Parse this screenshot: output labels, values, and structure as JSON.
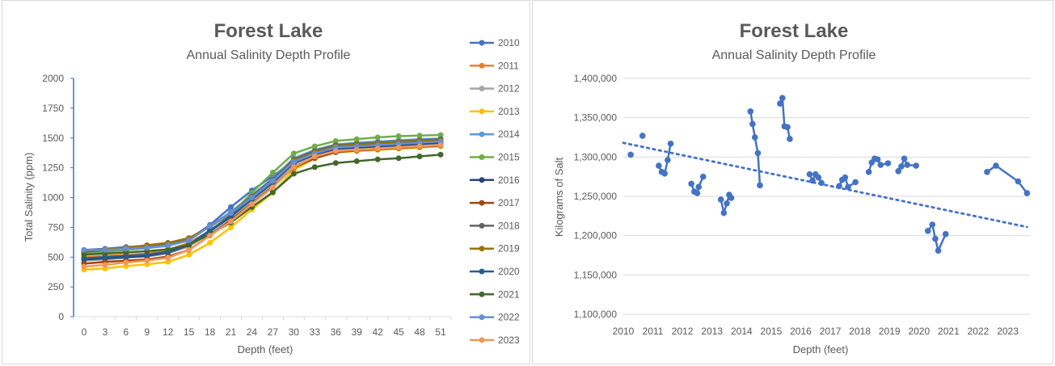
{
  "chart_data": [
    {
      "type": "line",
      "title": "Forest Lake",
      "subtitle": "Annual Salinity Depth Profile",
      "xlabel": "Depth (feet)",
      "ylabel": "Total Salinity (ppm)",
      "ylim": [
        0,
        2000
      ],
      "yticks": [
        0,
        250,
        500,
        750,
        1000,
        1250,
        1500,
        1750,
        2000
      ],
      "legend_position": "right",
      "grid": "horizontal",
      "x": [
        0,
        3,
        6,
        9,
        12,
        15,
        18,
        21,
        24,
        27,
        30,
        33,
        36,
        39,
        42,
        45,
        48,
        51
      ],
      "series": [
        {
          "name": "2010",
          "color": "#4472C4",
          "values": [
            560,
            570,
            585,
            595,
            610,
            650,
            770,
            920,
            1060,
            1180,
            1310,
            1390,
            1430,
            1440,
            1450,
            1460,
            1470,
            1480
          ]
        },
        {
          "name": "2011",
          "color": "#ED7D31",
          "values": [
            500,
            510,
            520,
            530,
            560,
            620,
            720,
            850,
            990,
            1120,
            1280,
            1360,
            1400,
            1410,
            1420,
            1430,
            1440,
            1445
          ]
        },
        {
          "name": "2012",
          "color": "#A5A5A5",
          "values": [
            470,
            480,
            495,
            505,
            530,
            590,
            700,
            830,
            970,
            1110,
            1270,
            1350,
            1400,
            1415,
            1425,
            1435,
            1445,
            1450
          ]
        },
        {
          "name": "2013",
          "color": "#FFC000",
          "values": [
            395,
            405,
            425,
            440,
            460,
            520,
            620,
            750,
            900,
            1040,
            1230,
            1330,
            1380,
            1390,
            1400,
            1410,
            1420,
            1430
          ]
        },
        {
          "name": "2014",
          "color": "#5B9BD5",
          "values": [
            540,
            550,
            565,
            575,
            595,
            640,
            760,
            880,
            1020,
            1160,
            1330,
            1400,
            1445,
            1460,
            1470,
            1480,
            1490,
            1495
          ]
        },
        {
          "name": "2015",
          "color": "#70AD47",
          "values": [
            530,
            545,
            560,
            575,
            600,
            650,
            760,
            860,
            1040,
            1210,
            1370,
            1430,
            1475,
            1490,
            1505,
            1515,
            1520,
            1525
          ]
        },
        {
          "name": "2016",
          "color": "#264478",
          "values": [
            480,
            490,
            500,
            510,
            540,
            600,
            720,
            840,
            990,
            1130,
            1290,
            1360,
            1410,
            1420,
            1430,
            1440,
            1450,
            1460
          ]
        },
        {
          "name": "2017",
          "color": "#9E480E",
          "values": [
            445,
            460,
            470,
            480,
            505,
            560,
            680,
            810,
            950,
            1090,
            1250,
            1330,
            1380,
            1395,
            1405,
            1415,
            1425,
            1435
          ]
        },
        {
          "name": "2018",
          "color": "#636363",
          "values": [
            545,
            560,
            575,
            590,
            615,
            655,
            760,
            870,
            1010,
            1150,
            1320,
            1390,
            1440,
            1450,
            1460,
            1470,
            1480,
            1490
          ]
        },
        {
          "name": "2019",
          "color": "#997300",
          "values": [
            555,
            565,
            580,
            600,
            620,
            660,
            755,
            865,
            1000,
            1140,
            1310,
            1380,
            1430,
            1445,
            1455,
            1465,
            1475,
            1480
          ]
        },
        {
          "name": "2020",
          "color": "#255E91",
          "values": [
            490,
            500,
            510,
            520,
            545,
            605,
            725,
            845,
            985,
            1125,
            1290,
            1365,
            1415,
            1430,
            1440,
            1450,
            1460,
            1470
          ]
        },
        {
          "name": "2021",
          "color": "#43682B",
          "values": [
            520,
            530,
            540,
            550,
            565,
            605,
            690,
            790,
            920,
            1045,
            1200,
            1255,
            1290,
            1305,
            1320,
            1330,
            1345,
            1360
          ]
        },
        {
          "name": "2022",
          "color": "#698ED0",
          "values": [
            560,
            560,
            570,
            580,
            600,
            640,
            760,
            870,
            1000,
            1140,
            1300,
            1370,
            1420,
            1430,
            1440,
            1450,
            1460,
            1470
          ]
        },
        {
          "name": "2023",
          "color": "#F1975A",
          "values": [
            420,
            435,
            455,
            470,
            495,
            560,
            680,
            800,
            945,
            1085,
            1255,
            1345,
            1390,
            1400,
            1410,
            1420,
            1430,
            1440
          ]
        }
      ]
    },
    {
      "type": "scatter",
      "title": "Forest Lake",
      "subtitle": "Annual Salinity Depth Profile",
      "xlabel": "Depth (feet)",
      "ylabel": "Kilograms of Salt",
      "xlim": [
        2010,
        2023.75
      ],
      "xticks": [
        2010,
        2011,
        2012,
        2013,
        2014,
        2015,
        2016,
        2017,
        2018,
        2019,
        2020,
        2021,
        2022,
        2023
      ],
      "ylim": [
        1100000,
        1400000
      ],
      "yticks": [
        "1,100,000",
        "1,150,000",
        "1,200,000",
        "1,250,000",
        "1,300,000",
        "1,350,000",
        "1,400,000"
      ],
      "grid": "horizontal",
      "color": "#4472C4",
      "trendline": {
        "style": "dotted",
        "start": [
          2010,
          1318000
        ],
        "end": [
          2023.65,
          1211000
        ]
      },
      "segments": [
        [
          [
            2010.25,
            1303000
          ]
        ],
        [
          [
            2010.65,
            1327000
          ]
        ],
        [
          [
            2011.2,
            1289000
          ],
          [
            2011.3,
            1281000
          ],
          [
            2011.4,
            1279000
          ],
          [
            2011.5,
            1296000
          ],
          [
            2011.6,
            1317000
          ]
        ],
        [
          [
            2012.3,
            1266000
          ],
          [
            2012.4,
            1256000
          ],
          [
            2012.5,
            1254000
          ],
          [
            2012.55,
            1262000
          ],
          [
            2012.7,
            1275000
          ]
        ],
        [
          [
            2013.3,
            1246000
          ],
          [
            2013.4,
            1229000
          ],
          [
            2013.5,
            1241000
          ],
          [
            2013.58,
            1252000
          ],
          [
            2013.65,
            1248000
          ]
        ],
        [
          [
            2014.3,
            1358000
          ],
          [
            2014.37,
            1342000
          ],
          [
            2014.45,
            1325000
          ],
          [
            2014.55,
            1305000
          ],
          [
            2014.62,
            1264000
          ]
        ],
        [
          [
            2015.3,
            1368000
          ],
          [
            2015.38,
            1375000
          ],
          [
            2015.45,
            1339000
          ],
          [
            2015.55,
            1338000
          ],
          [
            2015.63,
            1323000
          ]
        ],
        [
          [
            2016.3,
            1278000
          ],
          [
            2016.4,
            1270000
          ],
          [
            2016.5,
            1278000
          ],
          [
            2016.6,
            1274000
          ],
          [
            2016.7,
            1267000
          ]
        ],
        [
          [
            2017.3,
            1263000
          ],
          [
            2017.4,
            1271000
          ],
          [
            2017.5,
            1274000
          ],
          [
            2017.6,
            1262000
          ],
          [
            2017.85,
            1268000
          ]
        ],
        [
          [
            2018.3,
            1281000
          ],
          [
            2018.4,
            1293000
          ],
          [
            2018.5,
            1298000
          ],
          [
            2018.6,
            1297000
          ],
          [
            2018.7,
            1290000
          ],
          [
            2018.95,
            1292000
          ]
        ],
        [
          [
            2019.3,
            1282000
          ],
          [
            2019.4,
            1288000
          ],
          [
            2019.5,
            1298000
          ],
          [
            2019.6,
            1290000
          ],
          [
            2019.9,
            1289000
          ]
        ],
        [
          [
            2020.3,
            1206000
          ],
          [
            2020.45,
            1214000
          ],
          [
            2020.55,
            1196000
          ],
          [
            2020.65,
            1181000
          ],
          [
            2020.9,
            1202000
          ]
        ],
        [
          [
            2022.3,
            1281000
          ],
          [
            2022.6,
            1289000
          ],
          [
            2023.35,
            1269000
          ],
          [
            2023.65,
            1254000
          ]
        ]
      ]
    }
  ]
}
